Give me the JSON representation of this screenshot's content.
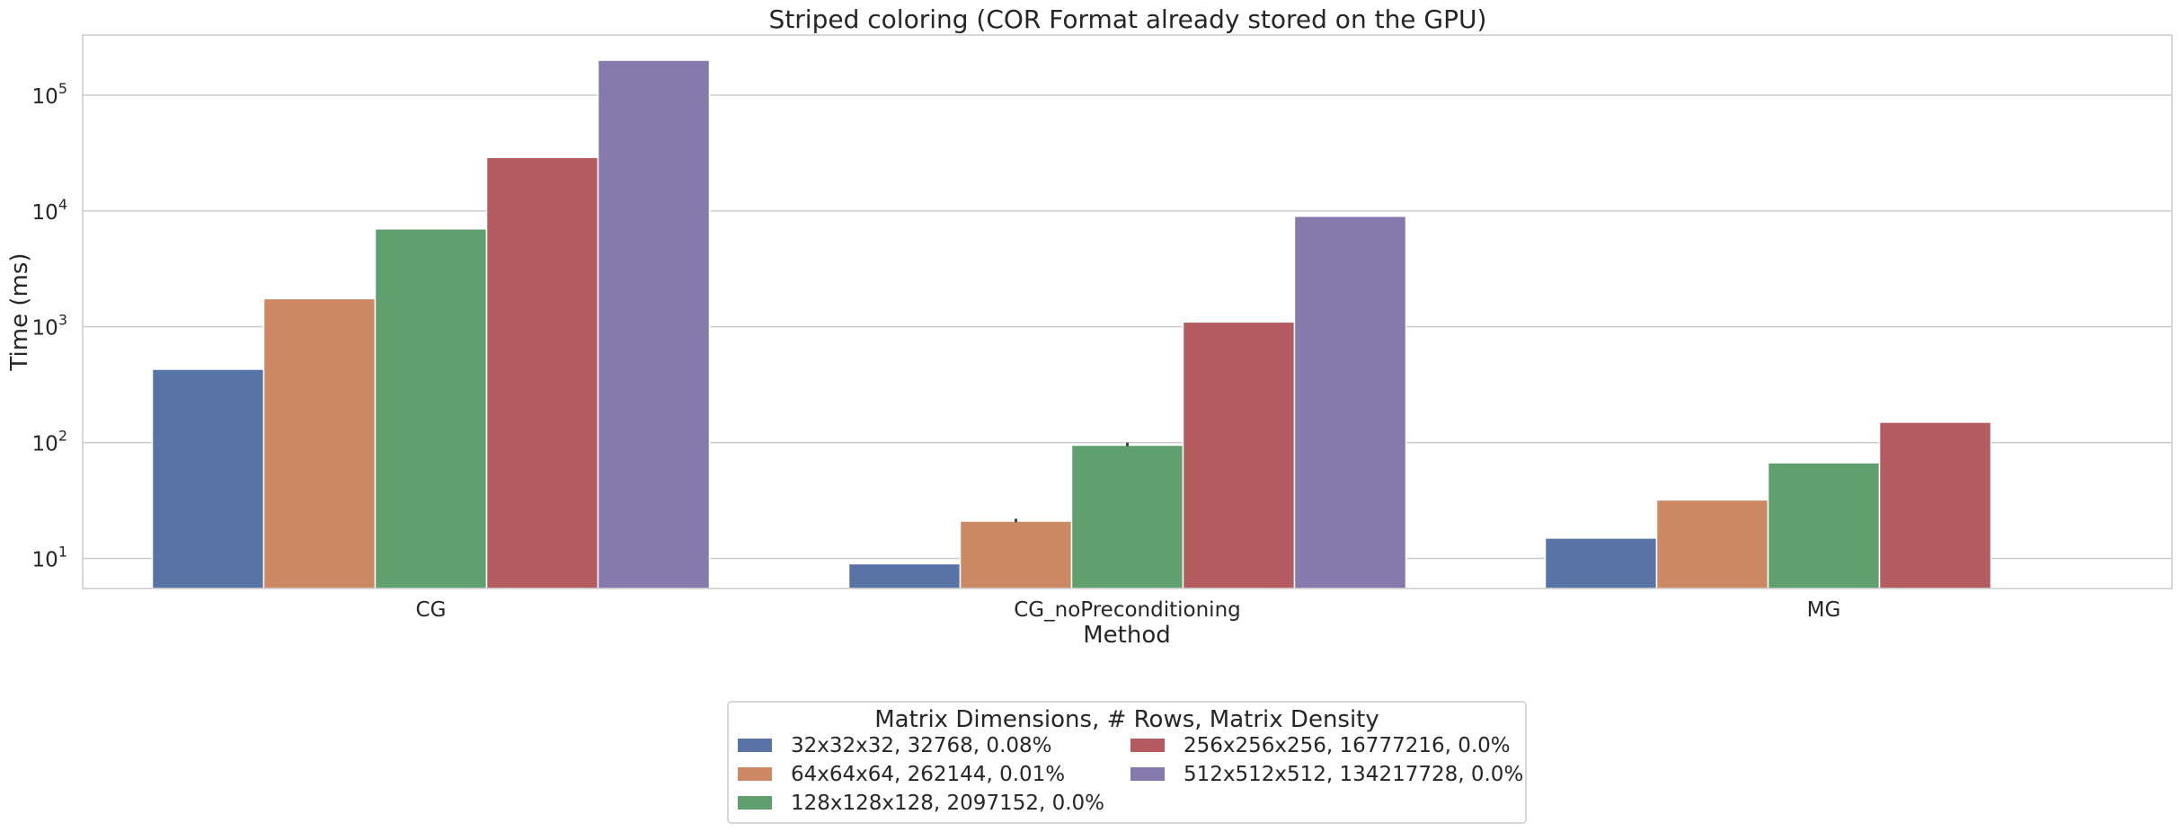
{
  "chart_data": {
    "type": "bar",
    "title": "Striped coloring (COR Format already stored on the GPU)",
    "xlabel": "Method",
    "ylabel": "Time (ms)",
    "yscale": "log",
    "ylim": [
      5.5,
      330000
    ],
    "yticks": [
      {
        "value": 10,
        "base": "10",
        "exp": "1"
      },
      {
        "value": 100,
        "base": "10",
        "exp": "2"
      },
      {
        "value": 1000,
        "base": "10",
        "exp": "3"
      },
      {
        "value": 10000,
        "base": "10",
        "exp": "4"
      },
      {
        "value": 100000,
        "base": "10",
        "exp": "5"
      }
    ],
    "grid": "horizontal",
    "categories": [
      "CG",
      "CG_noPreconditioning",
      "MG"
    ],
    "legend": {
      "title": "Matrix Dimensions, # Rows, Matrix Density",
      "placement": "bottom-center",
      "columns": 2
    },
    "series": [
      {
        "name": "32x32x32, 32768, 0.08%",
        "color": "#5874a6",
        "values": [
          430,
          9,
          15
        ]
      },
      {
        "name": "64x64x64, 262144, 0.01%",
        "color": "#cc8963",
        "values": [
          1750,
          21,
          32
        ]
      },
      {
        "name": "128x128x128, 2097152, 0.0%",
        "color": "#5fa06e",
        "values": [
          7000,
          95,
          67
        ]
      },
      {
        "name": "256x256x256, 16777216, 0.0%",
        "color": "#b45c5f",
        "values": [
          29000,
          1100,
          150
        ]
      },
      {
        "name": "512x512x512, 134217728, 0.0%",
        "color": "#857aab",
        "values": [
          200000,
          9000,
          null
        ]
      }
    ],
    "error_bars": [
      {
        "series": 1,
        "category": 1,
        "low": 20.5,
        "high": 22
      },
      {
        "series": 2,
        "category": 1,
        "low": 93,
        "high": 100
      }
    ]
  }
}
